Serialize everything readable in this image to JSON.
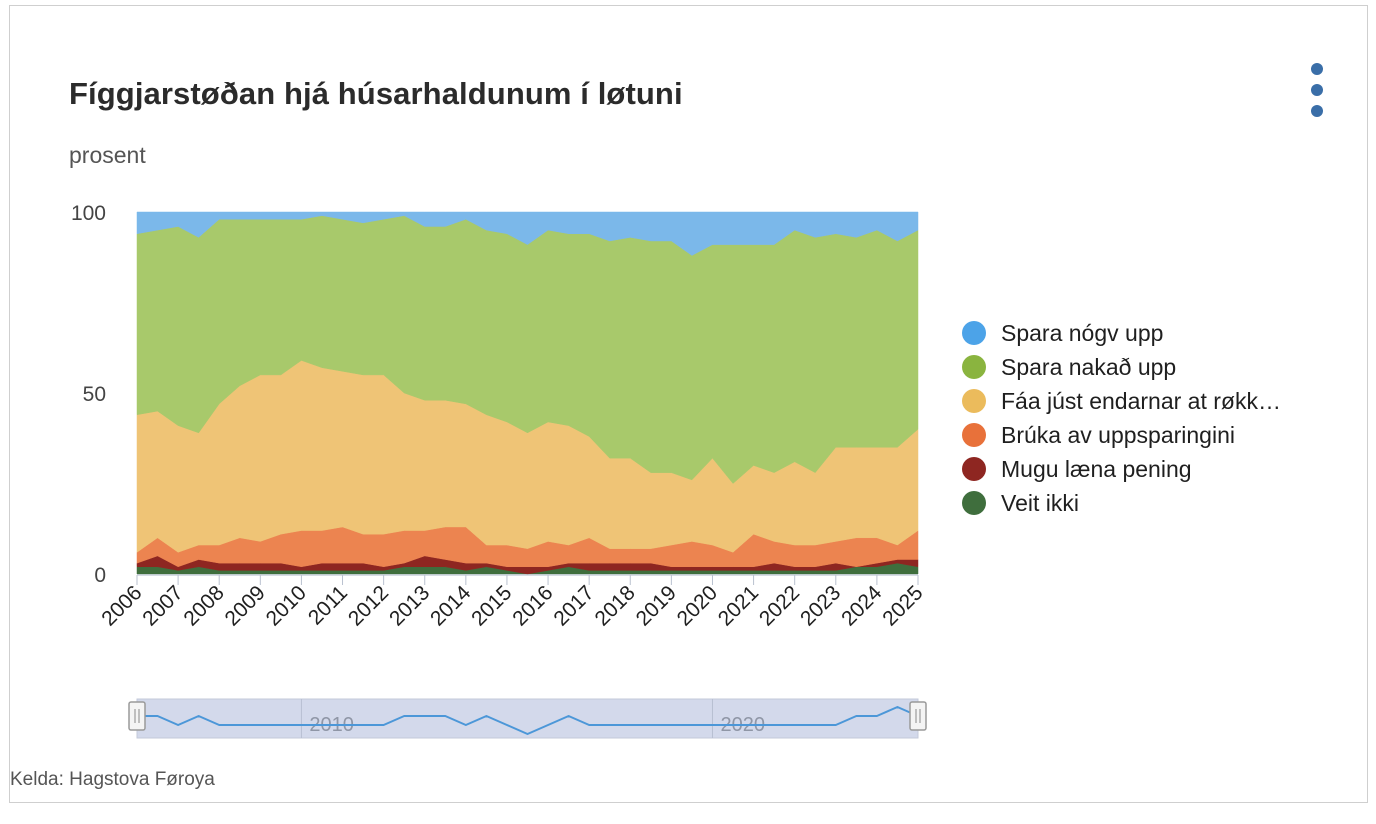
{
  "title": "Fíggjarstøðan hjá húsarhaldunum í løtuni",
  "subtitle": "prosent",
  "source": "Kelda: Hagstova Føroya",
  "menu": {
    "icon": "kebab-menu-icon"
  },
  "navigator": {
    "labels": [
      "2010",
      "2020"
    ]
  },
  "chart_data": {
    "type": "area",
    "stacked": true,
    "ylabel": "prosent",
    "ylim": [
      0,
      100
    ],
    "yticks": [
      0,
      50,
      100
    ],
    "xticks": [
      "2006",
      "2007",
      "2008",
      "2009",
      "2010",
      "2011",
      "2012",
      "2013",
      "2014",
      "2015",
      "2016",
      "2017",
      "2018",
      "2019",
      "2020",
      "2021",
      "2022",
      "2023",
      "2024",
      "2025"
    ],
    "x": [
      "2006-01",
      "2006-07",
      "2007-01",
      "2007-07",
      "2008-01",
      "2008-07",
      "2009-01",
      "2009-07",
      "2010-01",
      "2010-07",
      "2011-01",
      "2011-07",
      "2012-01",
      "2012-07",
      "2013-01",
      "2013-07",
      "2014-01",
      "2014-07",
      "2015-01",
      "2015-07",
      "2016-01",
      "2016-07",
      "2017-01",
      "2017-07",
      "2018-01",
      "2018-07",
      "2019-01",
      "2019-07",
      "2020-01",
      "2020-07",
      "2021-01",
      "2021-07",
      "2022-01",
      "2022-07",
      "2023-01",
      "2023-07",
      "2024-01",
      "2024-07",
      "2025-01"
    ],
    "legend_position": "right",
    "series": [
      {
        "name": "Veit ikki",
        "color": "#3f6e3d",
        "values": [
          2,
          2,
          1,
          2,
          1,
          1,
          1,
          1,
          1,
          1,
          1,
          1,
          1,
          2,
          2,
          2,
          1,
          2,
          1,
          0,
          1,
          2,
          1,
          1,
          1,
          1,
          1,
          1,
          1,
          1,
          1,
          1,
          1,
          1,
          1,
          2,
          2,
          3,
          2
        ]
      },
      {
        "name": "Mugu læna pening",
        "color": "#8e2621",
        "values": [
          1,
          3,
          1,
          2,
          2,
          2,
          2,
          2,
          1,
          2,
          2,
          2,
          1,
          1,
          3,
          2,
          2,
          1,
          1,
          2,
          1,
          1,
          2,
          2,
          2,
          2,
          1,
          1,
          1,
          1,
          1,
          2,
          1,
          1,
          2,
          0,
          1,
          1,
          2
        ]
      },
      {
        "name": "Brúka av uppsparingini",
        "color": "#ec8450",
        "values": [
          3,
          5,
          4,
          4,
          5,
          7,
          6,
          8,
          10,
          9,
          10,
          8,
          9,
          9,
          7,
          9,
          10,
          5,
          6,
          5,
          7,
          5,
          7,
          4,
          4,
          4,
          6,
          7,
          6,
          4,
          9,
          6,
          6,
          6,
          6,
          8,
          7,
          4,
          8
        ]
      },
      {
        "name": "Fáa júst endarnar at røkka saman",
        "color": "#efc476",
        "values": [
          38,
          35,
          35,
          31,
          39,
          42,
          46,
          44,
          47,
          45,
          43,
          44,
          44,
          38,
          36,
          35,
          34,
          36,
          34,
          32,
          33,
          33,
          28,
          25,
          25,
          21,
          20,
          17,
          24,
          19,
          19,
          19,
          23,
          20,
          26,
          25,
          25,
          27,
          28
        ]
      },
      {
        "name": "Spara nakað upp",
        "color": "#a8c96b",
        "values": [
          50,
          50,
          55,
          54,
          51,
          46,
          43,
          43,
          39,
          42,
          42,
          42,
          43,
          49,
          48,
          48,
          51,
          51,
          52,
          52,
          53,
          53,
          56,
          60,
          61,
          64,
          64,
          62,
          59,
          66,
          61,
          63,
          64,
          65,
          59,
          58,
          60,
          57,
          55
        ]
      },
      {
        "name": "Spara nógv upp",
        "color": "#7bb8ea",
        "values": [
          6,
          5,
          4,
          7,
          2,
          2,
          2,
          2,
          2,
          1,
          2,
          3,
          2,
          1,
          4,
          4,
          2,
          5,
          6,
          9,
          5,
          6,
          6,
          8,
          7,
          8,
          8,
          12,
          9,
          9,
          9,
          9,
          5,
          7,
          6,
          7,
          5,
          8,
          5
        ]
      }
    ],
    "legend": [
      {
        "label": "Spara nógv upp",
        "color": "#4ca3e8"
      },
      {
        "label": "Spara nakað upp",
        "color": "#8ab43f"
      },
      {
        "label": "Fáa júst endarnar at røkk…",
        "color": "#ebbb5c"
      },
      {
        "label": "Brúka av uppsparingini",
        "color": "#e8713a"
      },
      {
        "label": "Mugu læna pening",
        "color": "#8e2621"
      },
      {
        "label": "Veit ikki",
        "color": "#3f6e3d"
      }
    ]
  }
}
